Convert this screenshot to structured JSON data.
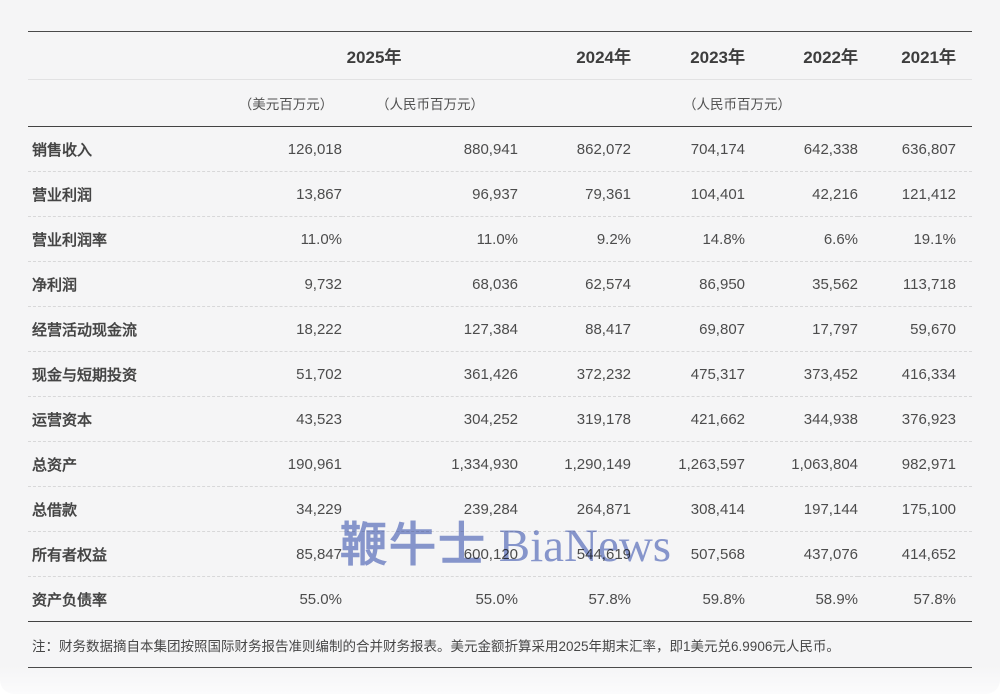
{
  "watermark": {
    "text_cn": "鞭牛士",
    "text_en": "BiaNews",
    "color": "#8C9BD3"
  },
  "table": {
    "year_headers": [
      "2025年",
      "2024年",
      "2023年",
      "2022年",
      "2021年"
    ],
    "unit_headers": {
      "usd_2025": "（美元百万元）",
      "rmb_2025": "（人民币百万元）",
      "rmb_prior_years": "（人民币百万元）"
    },
    "rows": [
      {
        "label": "销售收入",
        "values": [
          "126,018",
          "880,941",
          "862,072",
          "704,174",
          "642,338",
          "636,807"
        ]
      },
      {
        "label": "营业利润",
        "values": [
          "13,867",
          "96,937",
          "79,361",
          "104,401",
          "42,216",
          "121,412"
        ]
      },
      {
        "label": "营业利润率",
        "values": [
          "11.0%",
          "11.0%",
          "9.2%",
          "14.8%",
          "6.6%",
          "19.1%"
        ]
      },
      {
        "label": "净利润",
        "values": [
          "9,732",
          "68,036",
          "62,574",
          "86,950",
          "35,562",
          "113,718"
        ]
      },
      {
        "label": "经营活动现金流",
        "values": [
          "18,222",
          "127,384",
          "88,417",
          "69,807",
          "17,797",
          "59,670"
        ]
      },
      {
        "label": "现金与短期投资",
        "values": [
          "51,702",
          "361,426",
          "372,232",
          "475,317",
          "373,452",
          "416,334"
        ]
      },
      {
        "label": "运营资本",
        "values": [
          "43,523",
          "304,252",
          "319,178",
          "421,662",
          "344,938",
          "376,923"
        ]
      },
      {
        "label": "总资产",
        "values": [
          "190,961",
          "1,334,930",
          "1,290,149",
          "1,263,597",
          "1,063,804",
          "982,971"
        ]
      },
      {
        "label": "总借款",
        "values": [
          "34,229",
          "239,284",
          "264,871",
          "308,414",
          "197,144",
          "175,100"
        ]
      },
      {
        "label": "所有者权益",
        "values": [
          "85,847",
          "600,120",
          "544,619",
          "507,568",
          "437,076",
          "414,652"
        ]
      },
      {
        "label": "资产负债率",
        "values": [
          "55.0%",
          "55.0%",
          "57.8%",
          "59.8%",
          "58.9%",
          "57.8%"
        ]
      }
    ],
    "note": "注：财务数据摘自本集团按照国际财务报告准则编制的合并财务报表。美元金额折算采用2025年期末汇率，即1美元兑6.9906元人民币。"
  }
}
